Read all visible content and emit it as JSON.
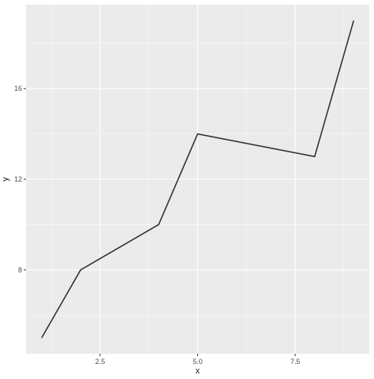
{
  "chart_data": {
    "type": "line",
    "title": "",
    "xlabel": "x",
    "ylabel": "y",
    "x": [
      1,
      2,
      4,
      5,
      8,
      9
    ],
    "series": [
      {
        "values": [
          5,
          8,
          10,
          14,
          13,
          19
        ]
      }
    ],
    "xlim": [
      0.6,
      9.4
    ],
    "ylim": [
      4.3,
      19.7
    ],
    "xticks": [
      2.5,
      5.0,
      7.5
    ],
    "xtick_labels": [
      "2.5",
      "5.0",
      "7.5"
    ],
    "yticks": [
      8,
      12,
      16
    ],
    "ytick_labels": [
      "8",
      "12",
      "16"
    ],
    "grid": true,
    "legend": "none",
    "colors": {
      "panel_background": "#EBEBEB",
      "grid_major": "#FFFFFF",
      "line": "#333333"
    }
  }
}
